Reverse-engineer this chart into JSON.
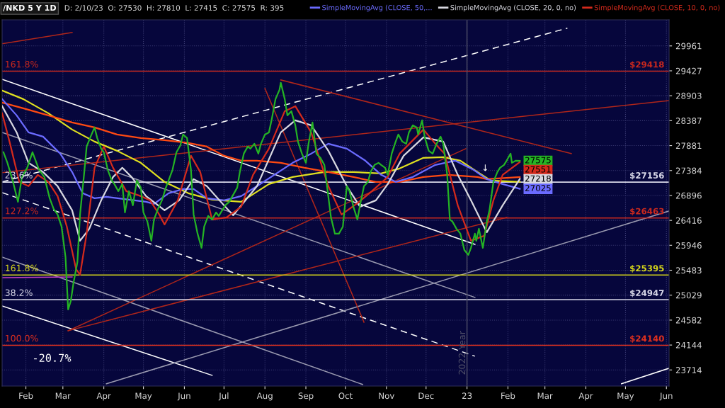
{
  "chart_data": {
    "type": "line",
    "title": "/NKD 5 Y 1D",
    "subtitle": "D: 2/10/23  O: 27530  H: 27810  L: 27415  C: 27575  R: 395",
    "log": true,
    "grid": true,
    "legend": "top",
    "xlim": [
      "2022-01-14",
      "2023-06-03"
    ],
    "xticks": [
      {
        "value": "2022-02-01",
        "label": "Feb"
      },
      {
        "value": "2022-03-01",
        "label": "Mar"
      },
      {
        "value": "2022-04-01",
        "label": "Apr"
      },
      {
        "value": "2022-05-01",
        "label": "May"
      },
      {
        "value": "2022-06-01",
        "label": "Jun"
      },
      {
        "value": "2022-07-01",
        "label": "Jul"
      },
      {
        "value": "2022-08-01",
        "label": "Aug"
      },
      {
        "value": "2022-09-01",
        "label": "Sep"
      },
      {
        "value": "2022-10-01",
        "label": "Oct"
      },
      {
        "value": "2022-11-01",
        "label": "Nov"
      },
      {
        "value": "2022-12-01",
        "label": "Dec"
      },
      {
        "value": "2023-01-01",
        "label": "23"
      },
      {
        "value": "2023-02-01",
        "label": "Feb"
      },
      {
        "value": "2023-03-01",
        "label": "Mar"
      },
      {
        "value": "2023-04-01",
        "label": "Apr"
      },
      {
        "value": "2023-05-01",
        "label": "May"
      },
      {
        "value": "2023-06-01",
        "label": "Jun"
      }
    ],
    "ylim": [
      23440,
      30530
    ],
    "yticks": [
      29961,
      29427,
      28903,
      28387,
      27881,
      27384,
      26896,
      26416,
      25946,
      25483,
      25029,
      24582,
      24144,
      23714
    ],
    "series": [
      {
        "color": "#e0e020",
        "x": [
          "2022-01-14",
          "2022-01-30",
          "2022-02-18",
          "2022-03-08",
          "2022-03-25",
          "2022-04-11",
          "2022-04-29",
          "2022-05-17",
          "2022-06-04",
          "2022-06-22",
          "2022-07-14",
          "2022-08-04",
          "2022-08-22",
          "2022-09-15",
          "2022-10-07",
          "2022-10-28",
          "2022-11-11",
          "2022-11-29",
          "2022-12-14",
          "2022-12-27",
          "2023-01-09",
          "2023-01-19",
          "2023-02-10"
        ],
        "values": [
          29011,
          28833,
          28540,
          28206,
          27962,
          27777,
          27537,
          27160,
          26939,
          26815,
          26773,
          27118,
          27257,
          27355,
          27355,
          27327,
          27425,
          27636,
          27650,
          27580,
          27355,
          27187,
          27160
        ]
      },
      {
        "color": "#ff4a12",
        "x": [
          "2022-01-14",
          "2022-01-30",
          "2022-02-18",
          "2022-03-08",
          "2022-03-25",
          "2022-04-11",
          "2022-04-29",
          "2022-05-17",
          "2022-06-04",
          "2022-06-18",
          "2022-07-01",
          "2022-07-14",
          "2022-07-26",
          "2022-08-13",
          "2022-08-31",
          "2022-09-18",
          "2022-10-07",
          "2022-10-24",
          "2022-11-11",
          "2022-11-29",
          "2022-12-18",
          "2023-01-09",
          "2023-01-16",
          "2023-02-10"
        ],
        "values": [
          28760,
          28642,
          28496,
          28351,
          28249,
          28105,
          28034,
          27991,
          27933,
          27862,
          27678,
          27580,
          27580,
          27537,
          27439,
          27355,
          27257,
          27160,
          27160,
          27257,
          27299,
          27257,
          27215,
          27257
        ]
      },
      {
        "name": "SimpleMovingAvg (CLOSE, 50,...",
        "color": "#6b6bff",
        "x": [
          "2022-01-14",
          "2022-01-25",
          "2022-02-03",
          "2022-02-14",
          "2022-02-27",
          "2022-03-08",
          "2022-03-16",
          "2022-03-25",
          "2022-04-03",
          "2022-04-20",
          "2022-05-03",
          "2022-05-09",
          "2022-05-20",
          "2022-05-31",
          "2022-06-08",
          "2022-06-18",
          "2022-07-01",
          "2022-07-14",
          "2022-07-26",
          "2022-08-22",
          "2022-09-05",
          "2022-09-18",
          "2022-10-02",
          "2022-10-16",
          "2022-10-28",
          "2022-11-08",
          "2022-11-21",
          "2022-12-08",
          "2022-12-23",
          "2023-01-06",
          "2023-01-16",
          "2023-01-28",
          "2023-02-10"
        ],
        "values": [
          28833,
          28496,
          28148,
          28062,
          27720,
          27355,
          26939,
          26842,
          26870,
          26815,
          26773,
          26732,
          26939,
          27021,
          27021,
          26842,
          26801,
          26883,
          27077,
          27537,
          27720,
          27919,
          27819,
          27580,
          27299,
          27160,
          27257,
          27495,
          27580,
          27397,
          27215,
          27118,
          27025
        ]
      },
      {
        "name": "SimpleMovingAvg (CLOSE, 20, 0, no)",
        "color": "#d8d8e0",
        "x": [
          "2022-01-14",
          "2022-01-25",
          "2022-02-03",
          "2022-02-14",
          "2022-02-25",
          "2022-03-08",
          "2022-03-14",
          "2022-03-21",
          "2022-03-30",
          "2022-04-08",
          "2022-04-15",
          "2022-04-22",
          "2022-05-03",
          "2022-05-17",
          "2022-05-28",
          "2022-06-08",
          "2022-06-18",
          "2022-07-01",
          "2022-07-08",
          "2022-07-26",
          "2022-08-13",
          "2022-08-24",
          "2022-09-05",
          "2022-09-18",
          "2022-10-02",
          "2022-10-12",
          "2022-10-24",
          "2022-11-02",
          "2022-11-14",
          "2022-11-29",
          "2022-12-14",
          "2022-12-25",
          "2023-01-04",
          "2023-01-16",
          "2023-01-28",
          "2023-02-10"
        ],
        "values": [
          28686,
          28148,
          27537,
          27355,
          27077,
          26610,
          26031,
          26258,
          26801,
          27257,
          27439,
          27257,
          26883,
          26610,
          26801,
          27215,
          27077,
          26705,
          26514,
          27077,
          28148,
          28395,
          28293,
          27777,
          27077,
          26678,
          26801,
          27118,
          27678,
          28048,
          27962,
          27299,
          26801,
          26191,
          26705,
          27218
        ]
      },
      {
        "name": "SimpleMovingAvg (CLOSE, 10, 0, no)",
        "color": "#d42a1c",
        "x": [
          "2022-01-14",
          "2022-01-20",
          "2022-01-27",
          "2022-02-03",
          "2022-02-10",
          "2022-02-18",
          "2022-02-25",
          "2022-03-04",
          "2022-03-11",
          "2022-03-14",
          "2022-03-19",
          "2022-03-25",
          "2022-04-01",
          "2022-04-08",
          "2022-04-18",
          "2022-04-29",
          "2022-05-06",
          "2022-05-13",
          "2022-05-17",
          "2022-05-27",
          "2022-06-06",
          "2022-06-13",
          "2022-06-22",
          "2022-07-03",
          "2022-07-14",
          "2022-07-23",
          "2022-08-04",
          "2022-08-16",
          "2022-08-24",
          "2022-09-05",
          "2022-09-18",
          "2022-09-28",
          "2022-10-10",
          "2022-10-21",
          "2022-11-02",
          "2022-11-11",
          "2022-11-29",
          "2022-12-08",
          "2022-12-15",
          "2022-12-25",
          "2023-01-04",
          "2023-01-14",
          "2023-01-21",
          "2023-01-28",
          "2023-02-10"
        ],
        "values": [
          28540,
          27919,
          27160,
          27077,
          27299,
          27160,
          26883,
          26298,
          25504,
          25400,
          26164,
          27439,
          27862,
          27439,
          26980,
          26883,
          26801,
          26528,
          26338,
          26801,
          27678,
          27355,
          26433,
          26474,
          26678,
          27299,
          27819,
          28583,
          28686,
          28148,
          27077,
          26528,
          26746,
          26980,
          27257,
          27720,
          28206,
          27919,
          27720,
          26705,
          26031,
          26124,
          26801,
          27299,
          27551
        ]
      },
      {
        "color": "#24b324",
        "x": [
          "2022-01-15",
          "2022-01-18",
          "2022-01-22",
          "2022-01-26",
          "2022-01-29",
          "2022-02-02",
          "2022-02-06",
          "2022-02-11",
          "2022-02-15",
          "2022-02-19",
          "2022-02-22",
          "2022-02-25",
          "2022-02-28",
          "2022-03-03",
          "2022-03-05",
          "2022-03-07",
          "2022-03-09",
          "2022-03-12",
          "2022-03-14",
          "2022-03-17",
          "2022-03-19",
          "2022-03-22",
          "2022-03-25",
          "2022-03-27",
          "2022-03-30",
          "2022-04-01",
          "2022-04-04",
          "2022-04-07",
          "2022-04-09",
          "2022-04-12",
          "2022-04-15",
          "2022-04-17",
          "2022-04-20",
          "2022-04-23",
          "2022-04-26",
          "2022-04-29",
          "2022-05-01",
          "2022-05-04",
          "2022-05-07",
          "2022-05-09",
          "2022-05-12",
          "2022-05-15",
          "2022-05-18",
          "2022-05-20",
          "2022-05-23",
          "2022-05-26",
          "2022-05-29",
          "2022-05-31",
          "2022-06-03",
          "2022-06-06",
          "2022-06-08",
          "2022-06-11",
          "2022-06-14",
          "2022-06-16",
          "2022-06-19",
          "2022-06-22",
          "2022-06-25",
          "2022-06-27",
          "2022-07-02",
          "2022-07-05",
          "2022-07-11",
          "2022-07-13",
          "2022-07-16",
          "2022-07-19",
          "2022-07-21",
          "2022-07-24",
          "2022-07-27",
          "2022-07-29",
          "2022-08-01",
          "2022-08-04",
          "2022-08-06",
          "2022-08-09",
          "2022-08-12",
          "2022-08-13",
          "2022-08-16",
          "2022-08-18",
          "2022-08-21",
          "2022-08-24",
          "2022-08-26",
          "2022-08-29",
          "2022-09-01",
          "2022-09-03",
          "2022-09-06",
          "2022-09-09",
          "2022-09-12",
          "2022-09-15",
          "2022-09-17",
          "2022-09-20",
          "2022-09-23",
          "2022-09-26",
          "2022-09-29",
          "2022-10-02",
          "2022-10-04",
          "2022-10-07",
          "2022-10-10",
          "2022-10-12",
          "2022-10-15",
          "2022-10-18",
          "2022-10-20",
          "2022-10-23",
          "2022-10-26",
          "2022-10-28",
          "2022-10-31",
          "2022-11-02",
          "2022-11-05",
          "2022-11-08",
          "2022-11-10",
          "2022-11-13",
          "2022-11-16",
          "2022-11-18",
          "2022-11-21",
          "2022-11-24",
          "2022-11-25",
          "2022-11-28",
          "2022-11-30",
          "2022-12-03",
          "2022-12-06",
          "2022-12-09",
          "2022-12-12",
          "2022-12-14",
          "2022-12-17",
          "2022-12-19",
          "2022-12-21",
          "2022-12-24",
          "2022-12-27",
          "2022-12-30",
          "2023-01-02",
          "2023-01-04",
          "2023-01-07",
          "2023-01-08",
          "2023-01-10",
          "2023-01-13",
          "2023-01-16",
          "2023-01-18",
          "2023-01-21",
          "2023-01-24",
          "2023-01-26",
          "2023-01-29",
          "2023-01-31",
          "2023-02-03",
          "2023-02-04",
          "2023-02-07",
          "2023-02-10"
        ],
        "values": [
          27748,
          27537,
          27187,
          26773,
          27257,
          27439,
          27748,
          27397,
          27257,
          26842,
          26637,
          26528,
          26298,
          25726,
          24772,
          24924,
          25245,
          25634,
          26528,
          27299,
          27862,
          28062,
          28249,
          28034,
          27819,
          27748,
          27397,
          27187,
          27118,
          26980,
          27118,
          26569,
          26980,
          26705,
          27187,
          27049,
          26569,
          26393,
          26031,
          26433,
          26637,
          26801,
          27049,
          27187,
          27397,
          27748,
          27890,
          28105,
          28034,
          27397,
          26528,
          26164,
          25898,
          26298,
          26501,
          26433,
          26569,
          26501,
          26705,
          26773,
          27049,
          27355,
          27720,
          27862,
          27819,
          27919,
          27720,
          27919,
          28105,
          28148,
          28395,
          28833,
          29026,
          29175,
          28833,
          28496,
          28583,
          28293,
          27962,
          27720,
          27537,
          27919,
          28351,
          27720,
          27636,
          27495,
          27077,
          26474,
          26164,
          26164,
          26298,
          27077,
          26980,
          26678,
          26433,
          26705,
          27077,
          27160,
          27355,
          27495,
          27537,
          27495,
          27439,
          27299,
          27720,
          27962,
          28105,
          27962,
          27919,
          28148,
          28293,
          28249,
          28105,
          28395,
          28048,
          27777,
          27720,
          27919,
          28062,
          27919,
          27299,
          26433,
          26393,
          26258,
          26164,
          25858,
          25766,
          25898,
          26164,
          26031,
          26258,
          25898,
          26393,
          26610,
          27160,
          27355,
          27439,
          27495,
          27580,
          27720,
          27537,
          27580,
          27575
        ]
      },
      {
        "color": "#ffffff",
        "line_style": "dashed",
        "x": [
          "2022-01-14",
          "2023-03-18"
        ],
        "values": [
          27160,
          30347
        ]
      },
      {
        "color": "#ffffff",
        "line_style": "dashed",
        "x": [
          "2022-01-14",
          "2023-01-07"
        ],
        "values": [
          26952,
          23950
        ]
      },
      {
        "color": "#ffffff",
        "x": [
          "2022-01-14",
          "2023-01-07"
        ],
        "values": [
          29249,
          25964
        ]
      },
      {
        "color": "#ffffff",
        "x": [
          "2022-01-14",
          "2022-06-22"
        ],
        "values": [
          24835,
          23622
        ]
      },
      {
        "color": "#9a9ab0",
        "x": [
          "2022-01-14",
          "2023-01-07"
        ],
        "values": [
          28148,
          24988
        ]
      },
      {
        "color": "#9a9ab0",
        "x": [
          "2022-01-14",
          "2022-10-14"
        ],
        "values": [
          25726,
          23466
        ]
      },
      {
        "color": "#9a9ab0",
        "x": [
          "2022-04-03",
          "2023-06-03"
        ],
        "values": [
          23478,
          26596
        ]
      },
      {
        "color": "#ffffff",
        "x": [
          "2023-04-28",
          "2023-06-03"
        ],
        "values": [
          23478,
          23743
        ]
      },
      {
        "color": "#b0261a",
        "x": [
          "2022-01-14",
          "2022-03-08"
        ],
        "values": [
          30007,
          30254
        ]
      },
      {
        "color": "#b0261a",
        "x": [
          "2022-01-14",
          "2023-06-03"
        ],
        "values": [
          27341,
          28803
        ]
      },
      {
        "color": "#b0261a",
        "x": [
          "2022-08-13",
          "2023-03-21"
        ],
        "values": [
          29234,
          27720
        ]
      },
      {
        "color": "#b0261a",
        "x": [
          "2022-08-01",
          "2022-10-15"
        ],
        "values": [
          29056,
          24545
        ]
      },
      {
        "color": "#b0261a",
        "x": [
          "2022-03-05",
          "2022-12-31"
        ],
        "values": [
          24395,
          27819
        ]
      },
      {
        "color": "#b0261a",
        "x": [
          "2022-03-05",
          "2023-01-31"
        ],
        "values": [
          24395,
          26474
        ]
      },
      {
        "color": "#c040c0",
        "x": [
          "2022-01-14",
          "2022-03-08"
        ],
        "values": [
          25348,
          25360
        ]
      }
    ],
    "ref_lines": [
      {
        "axis": "y",
        "value": 29418,
        "label": "$29418",
        "color": "#c8281e"
      },
      {
        "axis": "y",
        "value": 27156,
        "label": "$27156",
        "color": "#d8d8e8"
      },
      {
        "axis": "y",
        "value": 26463,
        "label": "$26463",
        "color": "#c8281e"
      },
      {
        "axis": "y",
        "value": 25395,
        "label": "$25395",
        "color": "#d4d41a"
      },
      {
        "axis": "y",
        "value": 24947,
        "label": "$24947",
        "color": "#d8d8e8"
      },
      {
        "axis": "y",
        "value": 24140,
        "label": "$24140",
        "color": "#e0301e"
      },
      {
        "axis": "x",
        "value": "2023-01-01",
        "label": "2022 Year",
        "color": "#505068"
      }
    ],
    "annotations": [
      {
        "text": "161.8%",
        "x": "2022-01-16",
        "y": 29418
      },
      {
        "text": "23.6%",
        "x": "2022-01-16",
        "y": 27156
      },
      {
        "text": "127.2%",
        "x": "2022-01-16",
        "y": 26463
      },
      {
        "text": "161.8%",
        "x": "2022-01-16",
        "y": 25395
      },
      {
        "text": "38.2%",
        "x": "2022-01-16",
        "y": 24947
      },
      {
        "text": "100.0%",
        "x": "2022-01-16",
        "y": 24140
      },
      "-20.7%",
      {
        "text": "↓",
        "x": "2023-01-12",
        "y": 27300
      },
      {
        "text": "27575",
        "x": "2023-02-10",
        "y": 27575
      },
      {
        "text": "27218",
        "x": "2023-02-10",
        "y": 27218
      },
      {
        "text": "27025",
        "x": "2023-02-10",
        "y": 27025
      },
      {
        "text": "27551",
        "x": "2023-02-10",
        "y": 27551
      }
    ]
  }
}
